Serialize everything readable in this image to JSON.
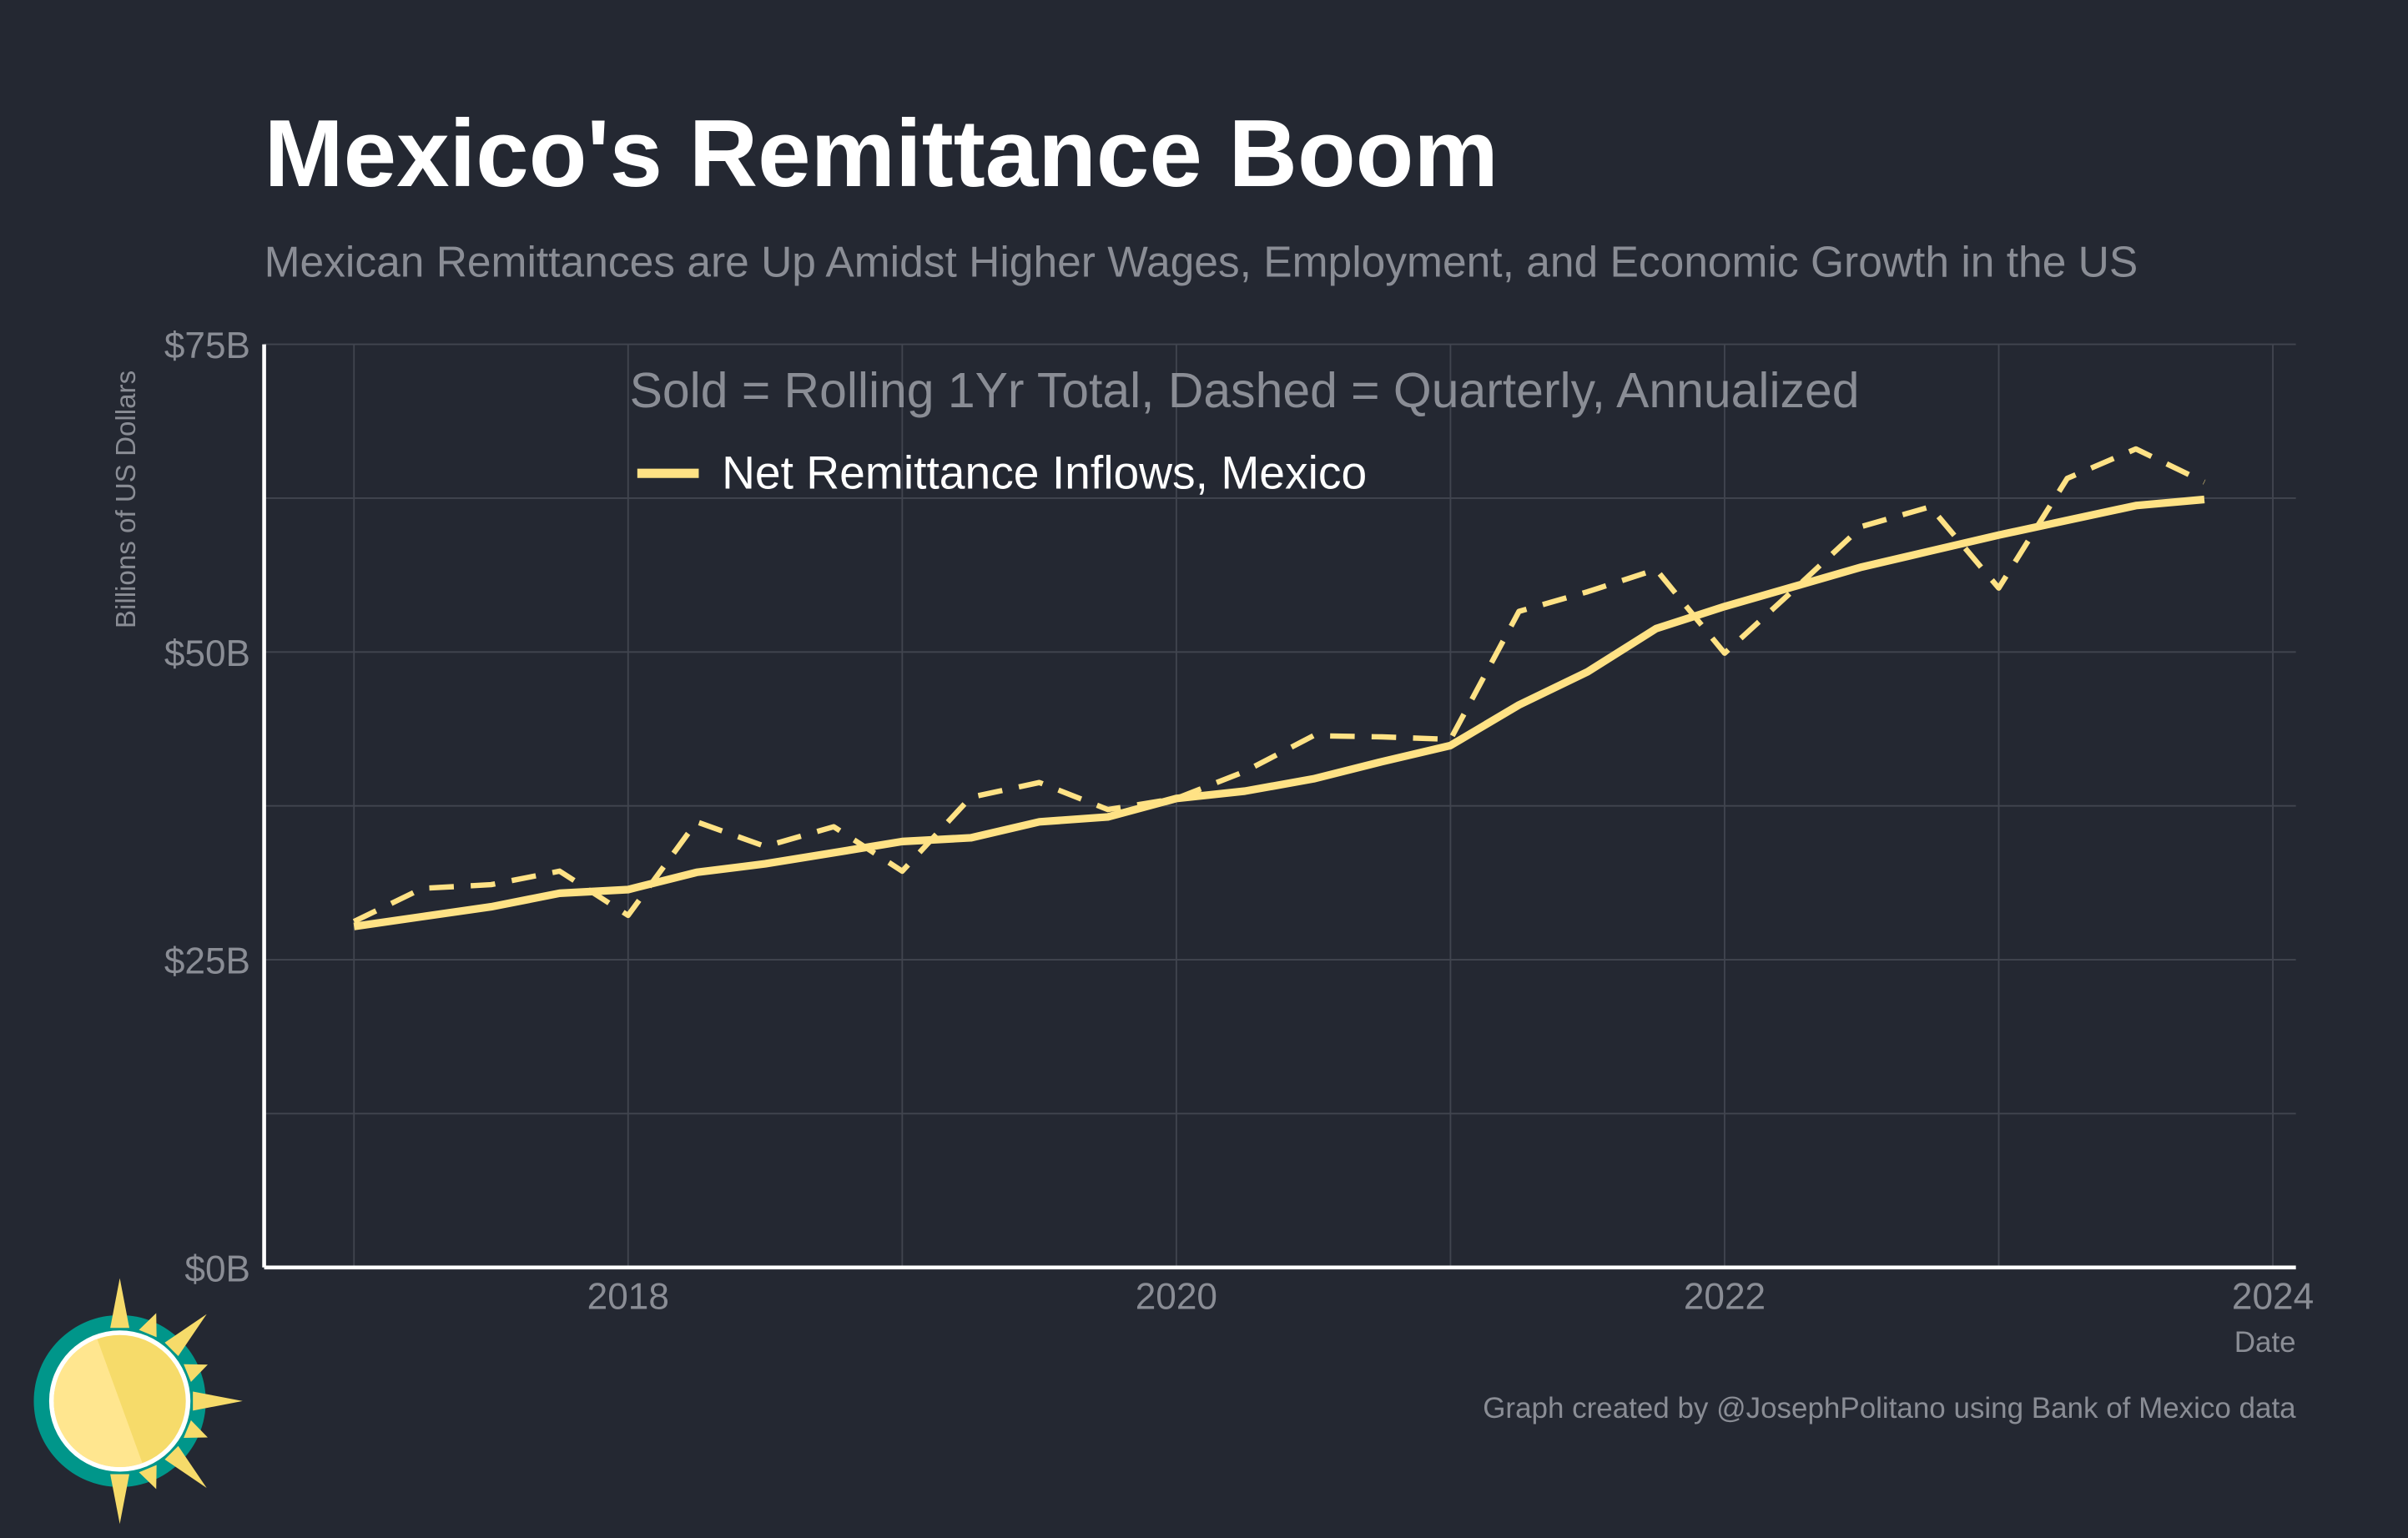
{
  "title": "Mexico's Remittance Boom",
  "subtitle": "Mexican Remittances are Up Amidst Higher Wages, Employment, and Economic Growth in the US",
  "credit": "Graph created by @JosephPolitano using Bank of Mexico data",
  "colors": {
    "background": "#242832",
    "series": "#FFE285",
    "grid": "#41454f",
    "muted": "#8a8d95",
    "logo_teal": "#00968a",
    "logo_sun": "#F6DB6A"
  },
  "chart_data": {
    "type": "line",
    "title": "Mexico's Remittance Boom",
    "xlabel": "Date",
    "ylabel": "Billions of US Dollars",
    "annotation": "Sold = Rolling 1Yr Total, Dashed = Quarterly, Annualized",
    "legend": {
      "placement": "top-center",
      "entries": [
        "Net Remittance Inflows, Mexico"
      ]
    },
    "grid": true,
    "xlim": [
      2016.67,
      2024.1
    ],
    "ylim": [
      0,
      75
    ],
    "x_ticks": [
      "2018",
      "2020",
      "2022",
      "2024"
    ],
    "y_ticks": [
      "$0B",
      "$25B",
      "$50B",
      "$75B"
    ],
    "x": [
      2017.0,
      2017.25,
      2017.5,
      2017.75,
      2018.0,
      2018.25,
      2018.5,
      2018.75,
      2019.0,
      2019.25,
      2019.5,
      2019.75,
      2020.0,
      2020.25,
      2020.5,
      2020.75,
      2021.0,
      2021.25,
      2021.5,
      2021.75,
      2022.0,
      2022.25,
      2022.5,
      2022.75,
      2023.0,
      2023.25,
      2023.5,
      2023.75
    ],
    "series": [
      {
        "name": "Net Remittance Inflows, Mexico",
        "style": "solid",
        "values": [
          27.7,
          28.5,
          29.3,
          30.4,
          30.7,
          32.1,
          32.8,
          33.7,
          34.6,
          34.9,
          36.2,
          36.6,
          38.1,
          38.7,
          39.7,
          41.1,
          42.4,
          45.7,
          48.4,
          51.9,
          53.7,
          55.3,
          56.9,
          58.2,
          59.5,
          60.7,
          61.9,
          62.4
        ]
      },
      {
        "style": "dashed",
        "values": [
          28.1,
          30.8,
          31.1,
          32.2,
          28.6,
          36.2,
          34.2,
          35.8,
          32.2,
          38.2,
          39.4,
          37.2,
          38.1,
          40.3,
          43.2,
          43.1,
          42.9,
          53.3,
          54.9,
          56.7,
          49.9,
          55.0,
          60.2,
          61.8,
          55.2,
          64.1,
          66.5,
          63.8
        ]
      }
    ]
  }
}
